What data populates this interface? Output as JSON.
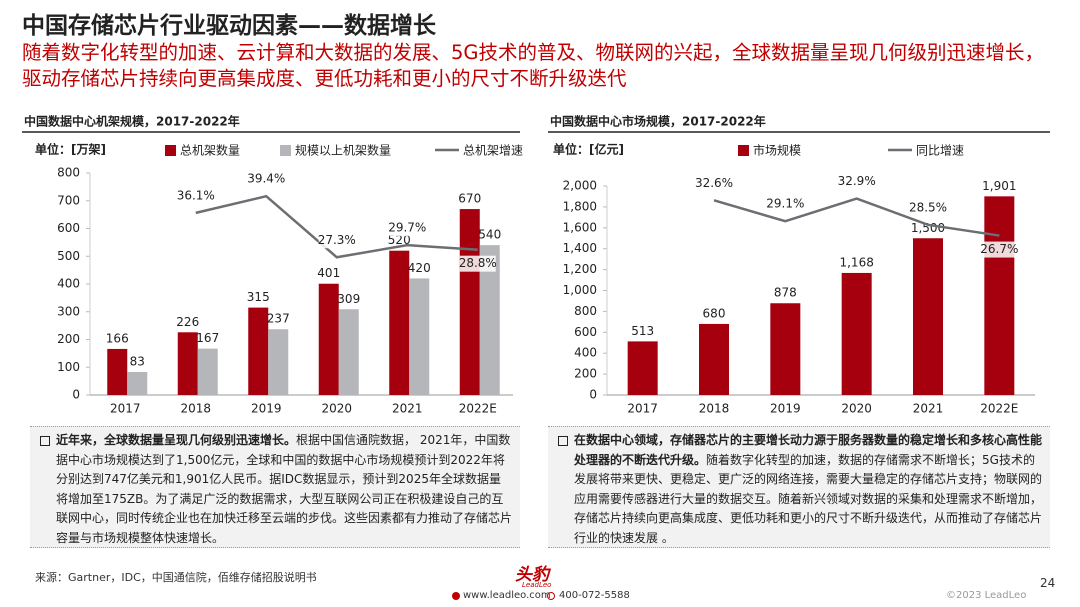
{
  "header": {
    "title": "中国存储芯片行业驱动因素——数据增长",
    "subtitle": "随着数字化转型的加速、云计算和大数据的发展、5G技术的普及、物联网的兴起，全球数据量呈现几何级别迅速增长，驱动存储芯片持续向更高集成度、更低功耗和更小的尺寸不断升级迭代"
  },
  "chart_data": [
    {
      "type": "bar",
      "title": "中国数据中心机架规模，2017-2022年",
      "unit": "单位：[万架]",
      "categories": [
        "2017",
        "2018",
        "2019",
        "2020",
        "2021",
        "2022E"
      ],
      "series": [
        {
          "name": "总机架数量",
          "color": "#a6000f",
          "values": [
            166,
            226,
            315,
            401,
            520,
            670
          ]
        },
        {
          "name": "规模以上机架数量",
          "color": "#b4b6b9",
          "values": [
            83,
            167,
            237,
            309,
            420,
            540
          ]
        },
        {
          "name": "总机架增速",
          "type": "line",
          "axis": "y2",
          "color": "#6b6e72",
          "values": [
            null,
            36.1,
            39.4,
            27.3,
            29.7,
            28.8
          ],
          "value_labels": [
            null,
            "36.1%",
            "39.4%",
            "27.3%",
            "29.7%",
            "28.8%"
          ]
        }
      ],
      "ylim": [
        0,
        800
      ],
      "yticks": [
        0,
        100,
        200,
        300,
        400,
        500,
        600,
        700,
        800
      ],
      "y2lim": [
        0,
        44
      ]
    },
    {
      "type": "bar",
      "title": "中国数据中心市场规模，2017-2022年",
      "unit": "单位：[亿元]",
      "categories": [
        "2017",
        "2018",
        "2019",
        "2020",
        "2021",
        "2022E"
      ],
      "series": [
        {
          "name": "市场规模",
          "color": "#a6000f",
          "values": [
            513,
            680,
            878,
            1168,
            1500,
            1901
          ],
          "value_labels": [
            "513",
            "680",
            "878",
            "1,168",
            "1,500",
            "1,901"
          ]
        },
        {
          "name": "同比增速",
          "type": "line",
          "axis": "y2",
          "color": "#6b6e72",
          "values": [
            null,
            32.6,
            29.1,
            32.9,
            28.5,
            26.7
          ],
          "value_labels": [
            null,
            "32.6%",
            "29.1%",
            "32.9%",
            "28.5%",
            "26.7%"
          ]
        }
      ],
      "ylim": [
        0,
        2000
      ],
      "yticks": [
        0,
        200,
        400,
        600,
        800,
        {
          "value": 1000,
          "label": "1,000"
        },
        {
          "value": 1200,
          "label": "1,200"
        },
        {
          "value": 1400,
          "label": "1,400"
        },
        {
          "value": 1600,
          "label": "1,600"
        },
        {
          "value": 1800,
          "label": "1,800"
        },
        {
          "value": 2000,
          "label": "2,000"
        }
      ],
      "y2lim": [
        0,
        35
      ]
    }
  ],
  "notes": [
    {
      "bold": "近年来，全球数据量呈现几何级别迅速增长。",
      "text": "根据中国信通院数据， 2021年，中国数据中心市场规模达到了1,500亿元，全球和中国的数据中心市场规模预计到2022年将分别达到747亿美元和1,901亿人民币。据IDC数据显示，预计到2025年全球数据量将增加至175ZB。为了满足广泛的数据需求，大型互联网公司正在积极建设自己的互联网中心，同时传统企业也在加快迁移至云端的步伐。这些因素都有力推动了存储芯片容量与市场规模整体快速增长。"
    },
    {
      "bold": "在数据中心领域，存储器芯片的主要增长动力源于服务器数量的稳定增长和多核心高性能处理器的不断迭代升级。",
      "text": "随着数字化转型的加速，数据的存储需求不断增长；5G技术的发展将带来更快、更稳定、更广泛的网络连接，需要大量稳定的存储芯片支持；物联网的应用需要传感器进行大量的数据交互。随着新兴领域对数据的采集和处理需求不断增加，存储芯片持续向更高集成度、更低功耗和更小的尺寸不断升级迭代，从而推动了存储芯片行业的快速发展 。"
    }
  ],
  "footer": {
    "source": "来源：Gartner，IDC，中国通信院，佰维存储招股说明书",
    "page": "24",
    "logo": "头豹",
    "logo_sub": "LeadLeo",
    "website": "www.leadleo.com",
    "phone": "400-072-5588",
    "copyright": "©2023 LeadLeo"
  }
}
